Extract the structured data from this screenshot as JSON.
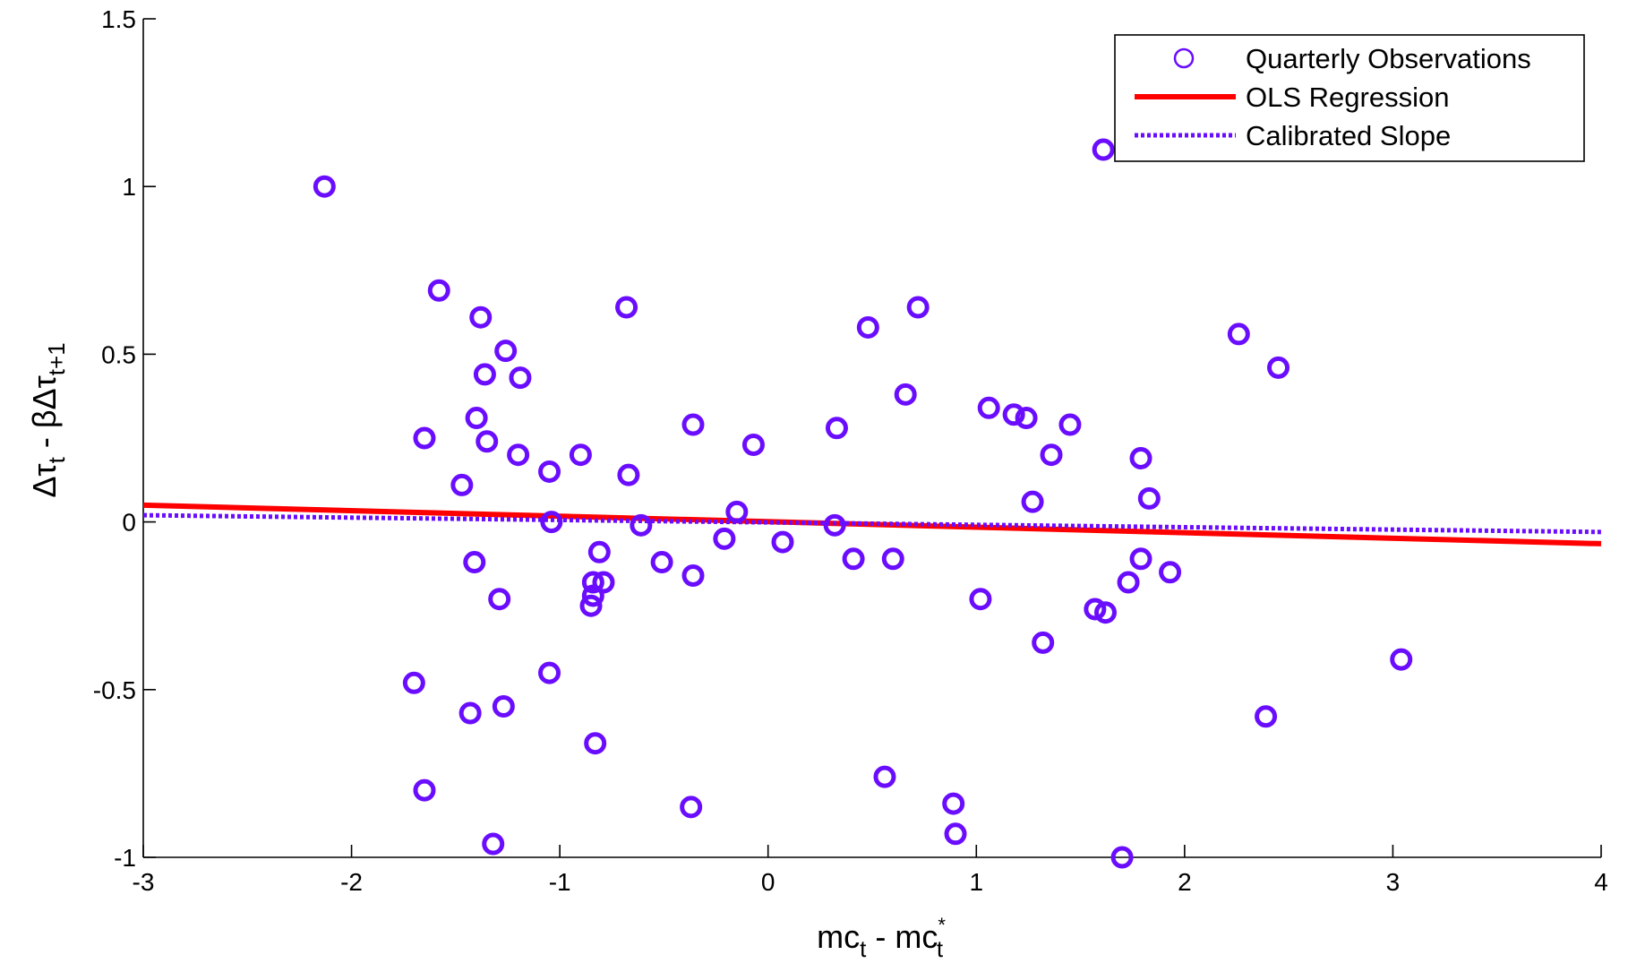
{
  "chart_data": {
    "type": "scatter",
    "title": "",
    "xlabel": {
      "base": "mc",
      "sub": "t",
      "minus": " - ",
      "base2": "mc",
      "sup2": "*",
      "sub2": "t"
    },
    "ylabel": {
      "p1": "Δτ",
      "s1": "t",
      "p2": " - βΔτ",
      "s2": "t+1"
    },
    "xlim": [
      -3,
      4
    ],
    "ylim": [
      -1,
      1.5
    ],
    "xticks": [
      -3,
      -2,
      -1,
      0,
      1,
      2,
      3,
      4
    ],
    "yticks": [
      -1,
      -0.5,
      0,
      0.5,
      1,
      1.5
    ],
    "xtick_labels": [
      "-3",
      "-2",
      "-1",
      "0",
      "1",
      "2",
      "3",
      "4"
    ],
    "ytick_labels": [
      "-1",
      "-0.5",
      "0",
      "0.5",
      "1",
      "1.5"
    ],
    "grid": false,
    "legend_position": "top-right",
    "series": [
      {
        "name": "Quarterly Observations",
        "kind": "scatter",
        "color": "#6a0dff",
        "points": [
          [
            -2.13,
            1.0
          ],
          [
            -1.58,
            0.69
          ],
          [
            -1.38,
            0.61
          ],
          [
            -1.26,
            0.51
          ],
          [
            -1.36,
            0.44
          ],
          [
            -1.19,
            0.43
          ],
          [
            -1.4,
            0.31
          ],
          [
            -1.65,
            0.25
          ],
          [
            -1.35,
            0.24
          ],
          [
            -1.2,
            0.2
          ],
          [
            -0.9,
            0.2
          ],
          [
            -1.05,
            0.15
          ],
          [
            -1.47,
            0.11
          ],
          [
            -0.68,
            0.64
          ],
          [
            -0.67,
            0.14
          ],
          [
            -1.04,
            0.0
          ],
          [
            -0.61,
            -0.01
          ],
          [
            -0.81,
            -0.09
          ],
          [
            -1.41,
            -0.12
          ],
          [
            -1.29,
            -0.23
          ],
          [
            -0.84,
            -0.18
          ],
          [
            -0.79,
            -0.18
          ],
          [
            -0.84,
            -0.22
          ],
          [
            -0.85,
            -0.25
          ],
          [
            -0.51,
            -0.12
          ],
          [
            -0.36,
            -0.16
          ],
          [
            -0.36,
            0.29
          ],
          [
            -0.07,
            0.23
          ],
          [
            -0.15,
            0.03
          ],
          [
            -0.21,
            -0.05
          ],
          [
            0.07,
            -0.06
          ],
          [
            0.33,
            0.28
          ],
          [
            0.32,
            -0.01
          ],
          [
            0.41,
            -0.11
          ],
          [
            0.6,
            -0.11
          ],
          [
            0.48,
            0.58
          ],
          [
            0.66,
            0.38
          ],
          [
            0.72,
            0.64
          ],
          [
            1.06,
            0.34
          ],
          [
            1.18,
            0.32
          ],
          [
            1.24,
            0.31
          ],
          [
            1.36,
            0.2
          ],
          [
            1.45,
            0.29
          ],
          [
            1.27,
            0.06
          ],
          [
            1.79,
            0.19
          ],
          [
            1.83,
            0.07
          ],
          [
            1.79,
            -0.11
          ],
          [
            1.73,
            -0.18
          ],
          [
            1.93,
            -0.15
          ],
          [
            1.57,
            -0.26
          ],
          [
            1.62,
            -0.27
          ],
          [
            1.02,
            -0.23
          ],
          [
            1.32,
            -0.36
          ],
          [
            2.26,
            0.56
          ],
          [
            2.45,
            0.46
          ],
          [
            1.61,
            1.11
          ],
          [
            3.04,
            -0.41
          ],
          [
            2.39,
            -0.58
          ],
          [
            1.7,
            -1.0
          ],
          [
            0.89,
            -0.84
          ],
          [
            0.9,
            -0.93
          ],
          [
            0.56,
            -0.76
          ],
          [
            -0.37,
            -0.85
          ],
          [
            -0.83,
            -0.66
          ],
          [
            -1.05,
            -0.45
          ],
          [
            -1.27,
            -0.55
          ],
          [
            -1.43,
            -0.57
          ],
          [
            -1.7,
            -0.48
          ],
          [
            -1.65,
            -0.8
          ],
          [
            -1.32,
            -0.96
          ]
        ]
      },
      {
        "name": "OLS Regression",
        "kind": "line",
        "color": "#ff0000",
        "style": "solid",
        "points": [
          [
            -3,
            0.05
          ],
          [
            4,
            -0.065
          ]
        ]
      },
      {
        "name": "Calibrated Slope",
        "kind": "line",
        "color": "#6a0dff",
        "style": "dotted",
        "points": [
          [
            -3,
            0.02
          ],
          [
            4,
            -0.03
          ]
        ]
      }
    ]
  }
}
